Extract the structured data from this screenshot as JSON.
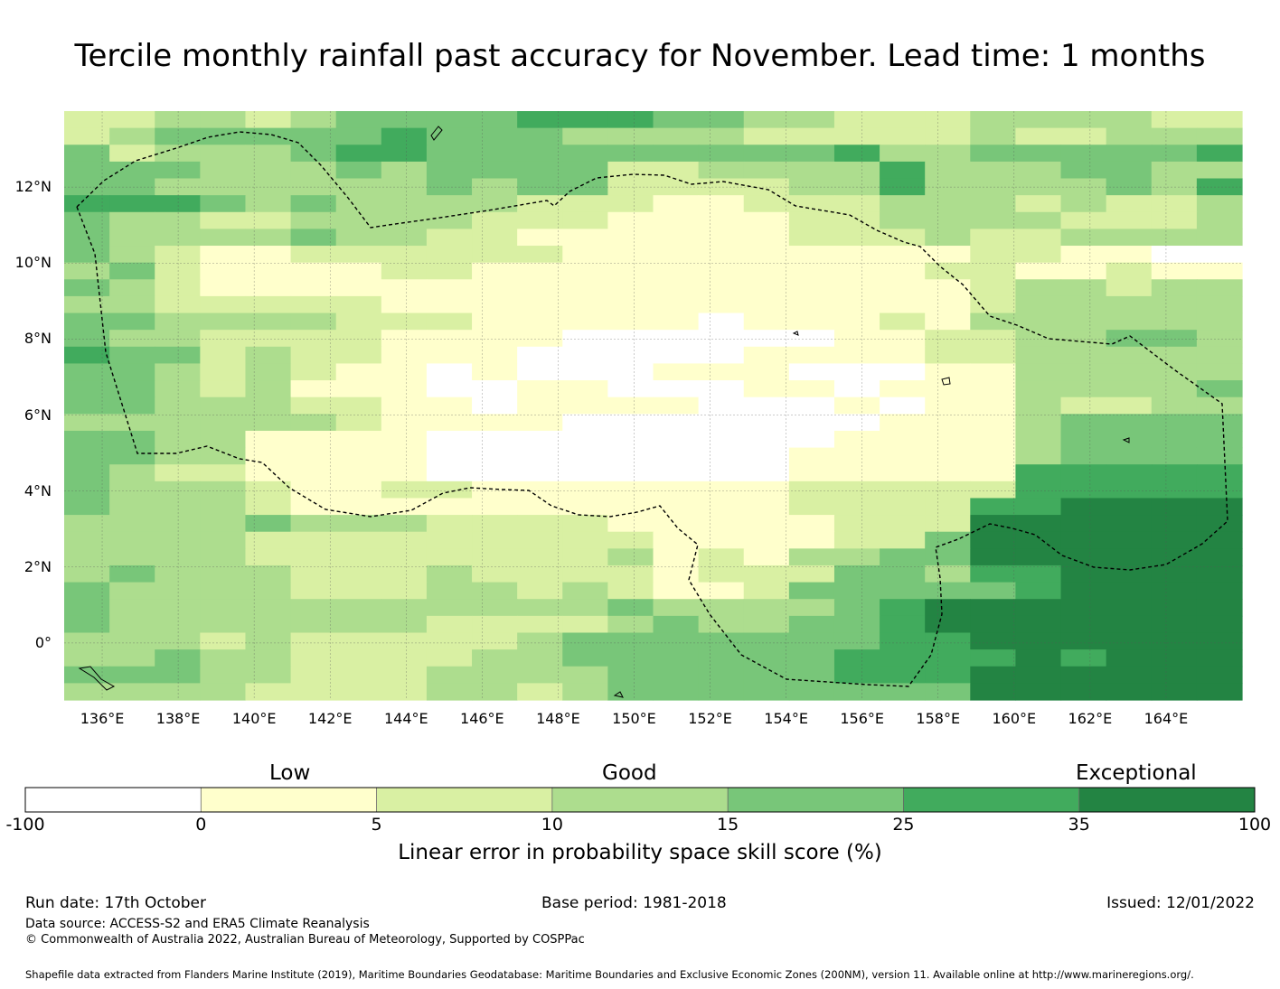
{
  "title": "Tercile monthly rainfall past accuracy for November. Lead time: 1 months",
  "map": {
    "lon_range": [
      135,
      166
    ],
    "lat_range": [
      -1.5,
      14
    ],
    "lon_labels": [
      "136°E",
      "138°E",
      "140°E",
      "142°E",
      "144°E",
      "146°E",
      "148°E",
      "150°E",
      "152°E",
      "154°E",
      "156°E",
      "158°E",
      "160°E",
      "162°E",
      "164°E"
    ],
    "lat_labels": [
      "12°N",
      "10°N",
      "8°N",
      "6°N",
      "4°N",
      "2°N",
      "0°"
    ],
    "grid_rows": [
      "22332344445554433222333322",
      "23444445444333322222322333",
      "42333455444444444533444445",
      "44433343444422333353334433",
      "44333333434422223353333435",
      "55543433332221122233323223",
      "43322333322211112233332223",
      "43333433221111112223223333",
      "43211222222111111111221100",
      "34211112211111111112211211",
      "43211111111111111111233233",
      "33222221111111111111233333",
      "44333322211111011121333333",
      "43322221111000000112233443",
      "54423221110000011112233333",
      "44323211010001110001133333",
      "44323111001100011011133334",
      "44333221101111000101132233",
      "33333321111000000011134444",
      "44331111000000000111134444",
      "44331111000000001111134444",
      "43221111000000001111155555",
      "43332112211111112222255555",
      "43332111111111112222556666",
      "33334333222211111222666666",
      "33332222222221111224666666",
      "33332222222231213344666666",
      "34333222322221222443556666",
      "43333222332321124444456666",
      "43333333333343333456666666",
      "43333333222234334456666666",
      "33323222223444444455666666",
      "33433222233444444555565666",
      "44433222333344444555666666",
      "33332222332344444444666666"
    ]
  },
  "colorbar": {
    "colors": [
      "#ffffff",
      "#ffffcc",
      "#d9f0a3",
      "#addd8e",
      "#78c679",
      "#41ab5d",
      "#238443"
    ],
    "ticks": [
      "-100",
      "0",
      "5",
      "10",
      "15",
      "25",
      "35",
      "100"
    ],
    "categories": [
      "Low",
      "Good",
      "Exceptional"
    ],
    "axis_title": "Linear error in probability space skill score (%)"
  },
  "footer": {
    "run_date": "Run date: 17th October",
    "base_period": "Base period: 1981-2018",
    "issued": "Issued: 12/01/2022",
    "data_source": "Data source: ACCESS-S2 and ERA5 Climate Reanalysis",
    "copyright": "© Commonwealth of Australia 2022, Australian Bureau of Meteorology, Supported by COSPPac",
    "shapefile": "Shapefile data extracted from Flanders Marine Institute (2019), Maritime Boundaries Geodatabase: Maritime Boundaries and Exclusive Economic Zones (200NM), version 11. Available online at http://www.marineregions.org/."
  }
}
